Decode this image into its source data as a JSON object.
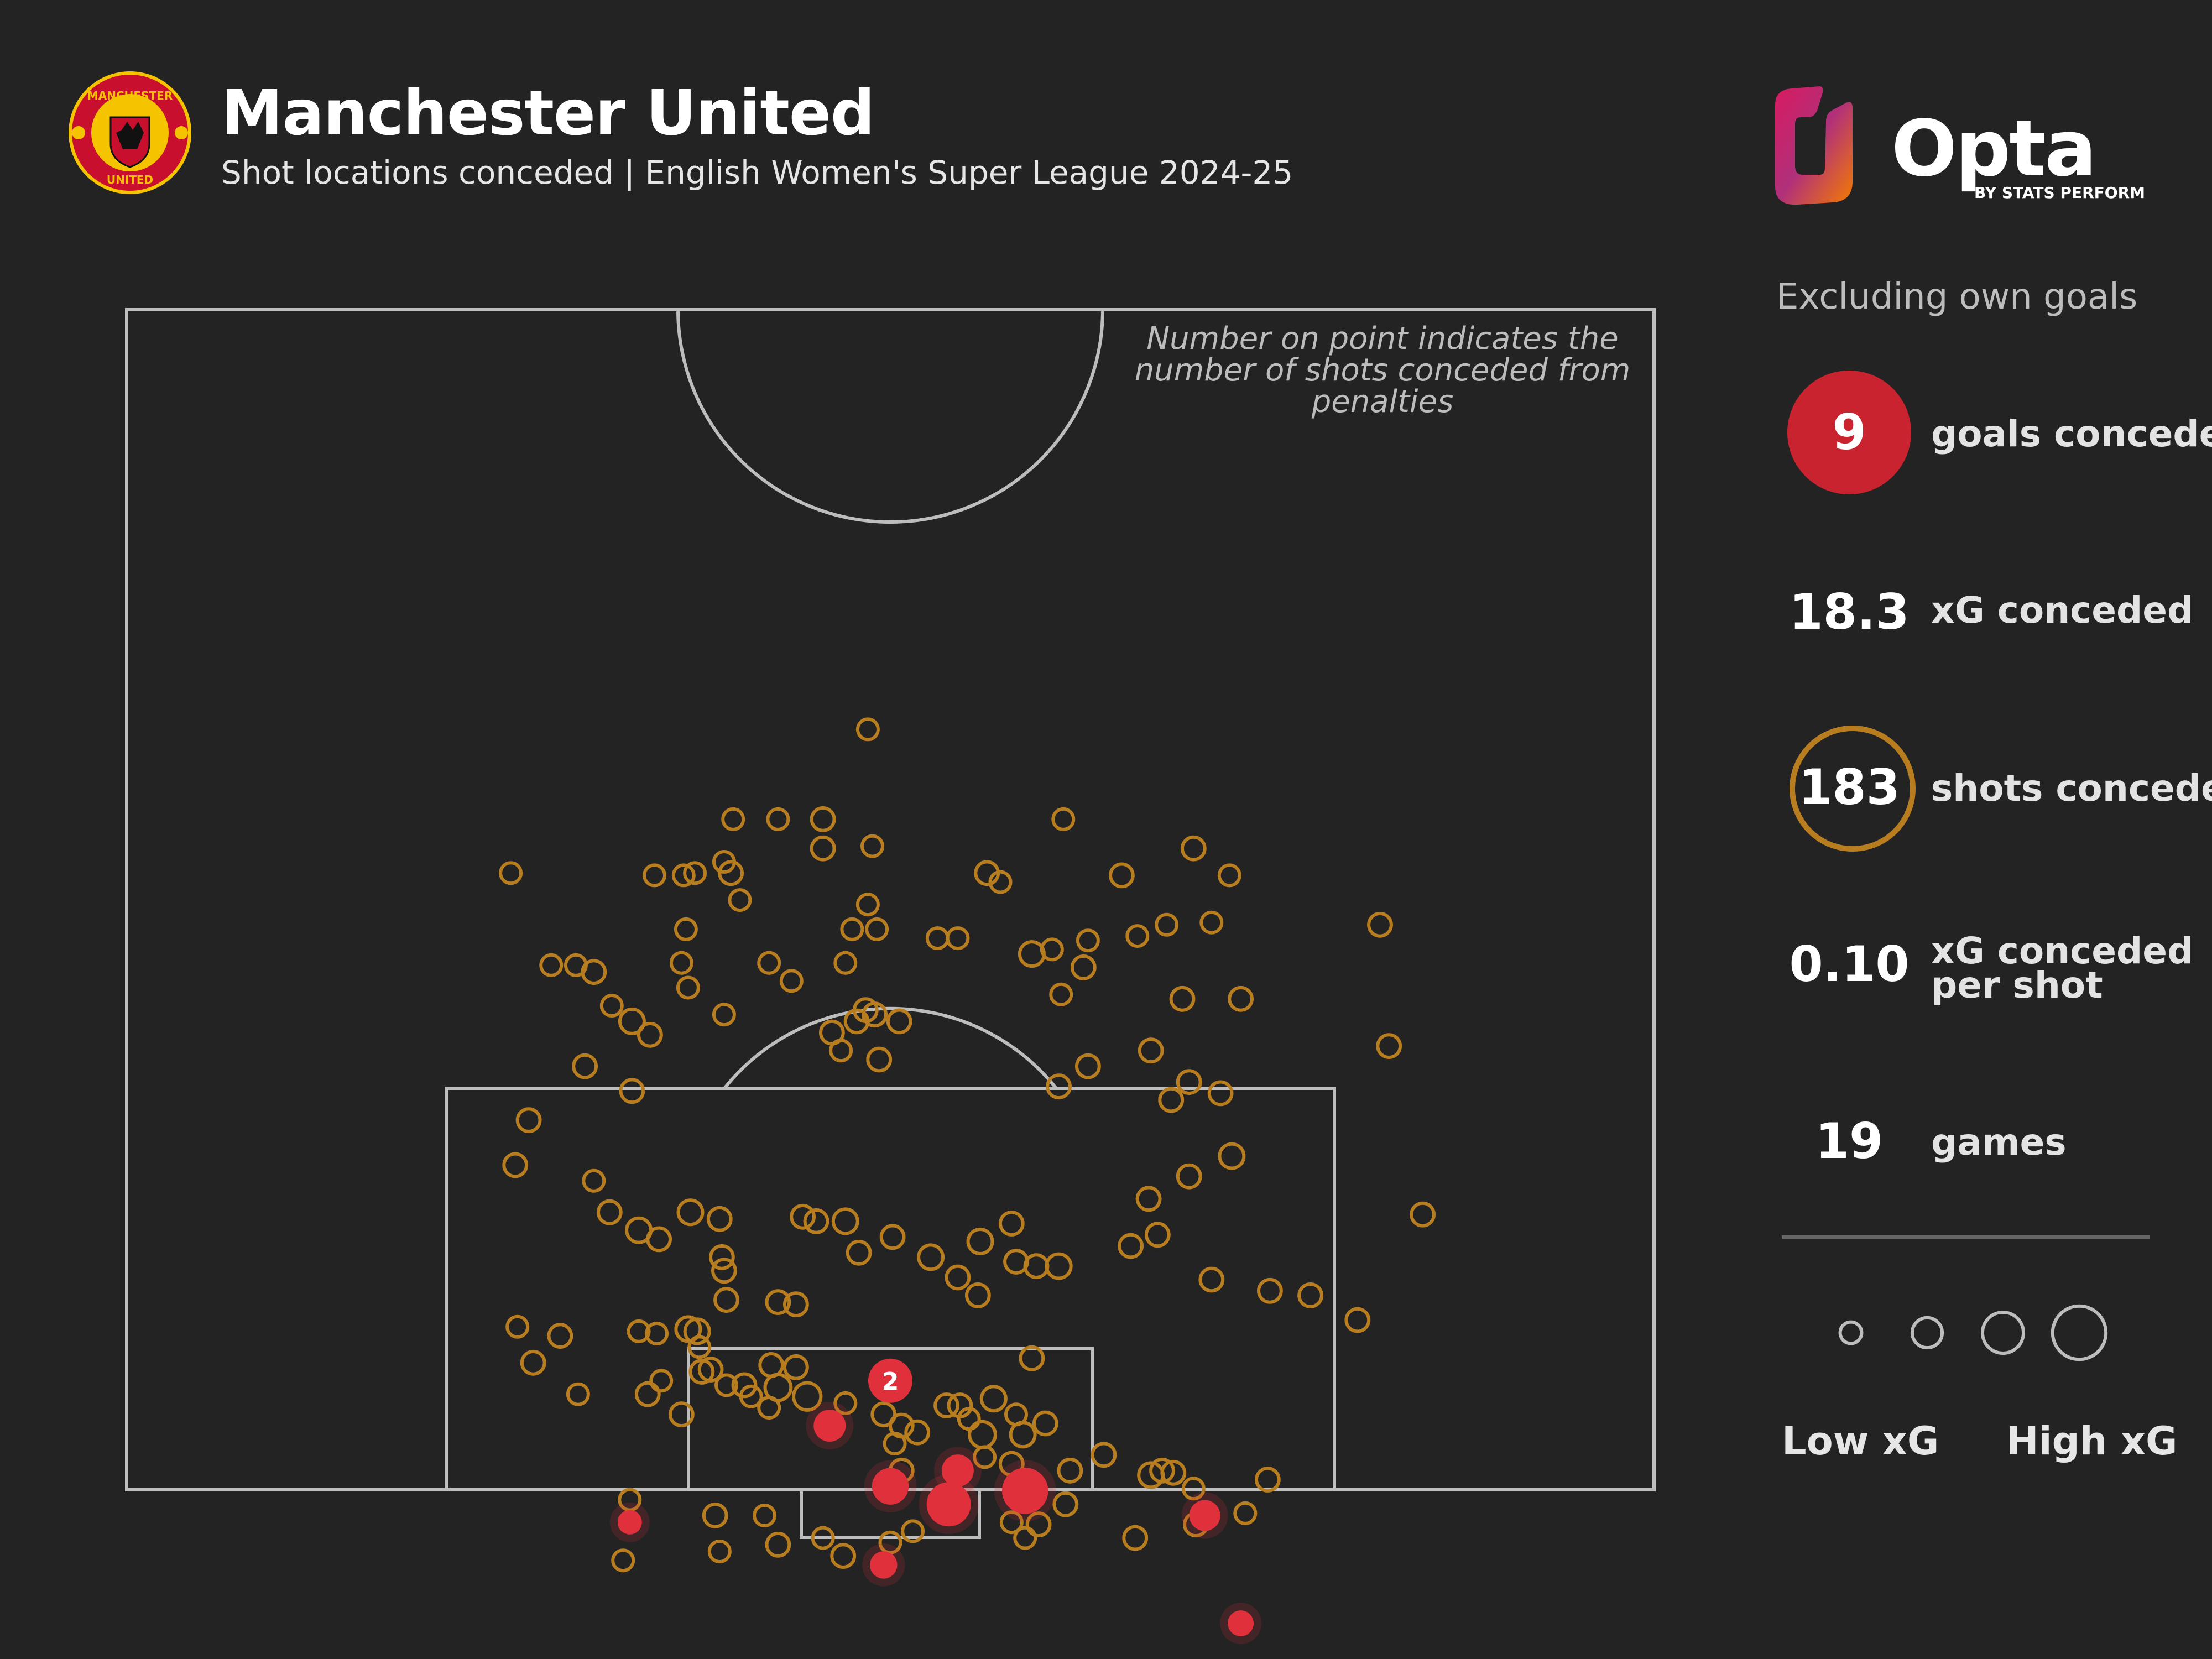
{
  "header": {
    "title": "Manchester United",
    "subtitle": "Shot locations conceded | English Women's Super League 2024-25"
  },
  "crest": {
    "text_top": "MANCHESTER",
    "text_bottom": "UNITED"
  },
  "brand": {
    "name": "Opta",
    "byline": "BY STATS PERFORM"
  },
  "note": "Number on point indicates the number of shots conceded from penalties",
  "panel": {
    "exclusion": "Excluding own goals",
    "stats": [
      {
        "value": "9",
        "label": "goals conceded"
      },
      {
        "value": "18.3",
        "label": "xG conceded"
      },
      {
        "value": "183",
        "label": "shots conceded"
      },
      {
        "value": "0.10",
        "label_line1": "xG conceded",
        "label_line2": "per shot"
      },
      {
        "value": "19",
        "label": "games"
      }
    ],
    "legend": {
      "low": "Low xG",
      "high": "High xG"
    }
  },
  "colors": {
    "background": "#232323",
    "shot": "#b87d1f",
    "goal": "#e0303c",
    "pitch_lines": "#bdbdbd"
  },
  "chart_data": {
    "type": "scatter",
    "pitch": {
      "x": [
        0,
        68
      ],
      "y": [
        0,
        52.5
      ],
      "description": "attacking half, goal at y = 52.5"
    },
    "xg_size_legend": [
      0.03,
      0.1,
      0.25,
      0.5
    ],
    "shots": [
      {
        "x": 33.0,
        "y": 18.0,
        "xg": 0.02
      },
      {
        "x": 27.0,
        "y": 14.0,
        "xg": 0.02
      },
      {
        "x": 29.0,
        "y": 14.0,
        "xg": 0.02
      },
      {
        "x": 31.0,
        "y": 14.0,
        "xg": 0.03
      },
      {
        "x": 31.0,
        "y": 12.7,
        "xg": 0.03
      },
      {
        "x": 33.2,
        "y": 12.8,
        "xg": 0.02
      },
      {
        "x": 41.7,
        "y": 14.0,
        "xg": 0.02
      },
      {
        "x": 17.1,
        "y": 11.6,
        "xg": 0.02
      },
      {
        "x": 23.5,
        "y": 11.5,
        "xg": 0.02
      },
      {
        "x": 25.3,
        "y": 11.6,
        "xg": 0.02
      },
      {
        "x": 26.9,
        "y": 11.6,
        "xg": 0.03
      },
      {
        "x": 26.6,
        "y": 12.1,
        "xg": 0.02
      },
      {
        "x": 24.8,
        "y": 11.5,
        "xg": 0.02
      },
      {
        "x": 33.0,
        "y": 10.2,
        "xg": 0.02
      },
      {
        "x": 44.3,
        "y": 11.5,
        "xg": 0.03
      },
      {
        "x": 49.1,
        "y": 11.5,
        "xg": 0.02
      },
      {
        "x": 47.5,
        "y": 12.7,
        "xg": 0.03
      },
      {
        "x": 38.9,
        "y": 11.2,
        "xg": 0.02
      },
      {
        "x": 38.3,
        "y": 11.6,
        "xg": 0.03
      },
      {
        "x": 27.3,
        "y": 10.4,
        "xg": 0.02
      },
      {
        "x": 24.9,
        "y": 9.1,
        "xg": 0.02
      },
      {
        "x": 32.3,
        "y": 9.1,
        "xg": 0.02
      },
      {
        "x": 33.4,
        "y": 9.1,
        "xg": 0.02
      },
      {
        "x": 36.1,
        "y": 8.7,
        "xg": 0.02
      },
      {
        "x": 37.0,
        "y": 8.7,
        "xg": 0.02
      },
      {
        "x": 42.8,
        "y": 8.6,
        "xg": 0.02
      },
      {
        "x": 41.2,
        "y": 8.2,
        "xg": 0.02
      },
      {
        "x": 46.3,
        "y": 9.3,
        "xg": 0.02
      },
      {
        "x": 45.0,
        "y": 8.8,
        "xg": 0.02
      },
      {
        "x": 48.3,
        "y": 9.4,
        "xg": 0.02
      },
      {
        "x": 55.8,
        "y": 9.3,
        "xg": 0.03
      },
      {
        "x": 18.9,
        "y": 7.5,
        "xg": 0.02
      },
      {
        "x": 20.0,
        "y": 7.5,
        "xg": 0.02
      },
      {
        "x": 20.8,
        "y": 7.2,
        "xg": 0.03
      },
      {
        "x": 24.7,
        "y": 7.6,
        "xg": 0.02
      },
      {
        "x": 28.6,
        "y": 7.6,
        "xg": 0.02
      },
      {
        "x": 29.6,
        "y": 6.8,
        "xg": 0.02
      },
      {
        "x": 40.3,
        "y": 8.0,
        "xg": 0.04
      },
      {
        "x": 42.6,
        "y": 7.4,
        "xg": 0.03
      },
      {
        "x": 21.6,
        "y": 5.7,
        "xg": 0.02
      },
      {
        "x": 22.5,
        "y": 5.0,
        "xg": 0.04
      },
      {
        "x": 23.3,
        "y": 4.4,
        "xg": 0.03
      },
      {
        "x": 25.0,
        "y": 6.5,
        "xg": 0.02
      },
      {
        "x": 26.6,
        "y": 5.3,
        "xg": 0.02
      },
      {
        "x": 31.4,
        "y": 4.5,
        "xg": 0.03
      },
      {
        "x": 32.5,
        "y": 5.0,
        "xg": 0.03
      },
      {
        "x": 33.3,
        "y": 5.3,
        "xg": 0.03
      },
      {
        "x": 32.9,
        "y": 5.5,
        "xg": 0.03
      },
      {
        "x": 34.4,
        "y": 5.0,
        "xg": 0.03
      },
      {
        "x": 31.8,
        "y": 3.7,
        "xg": 0.02
      },
      {
        "x": 32.0,
        "y": 7.6,
        "xg": 0.02
      },
      {
        "x": 41.6,
        "y": 6.2,
        "xg": 0.02
      },
      {
        "x": 47.0,
        "y": 6.0,
        "xg": 0.03
      },
      {
        "x": 49.6,
        "y": 6.0,
        "xg": 0.03
      },
      {
        "x": 45.6,
        "y": 3.7,
        "xg": 0.03
      },
      {
        "x": 20.4,
        "y": 3.0,
        "xg": 0.03
      },
      {
        "x": 22.5,
        "y": 1.9,
        "xg": 0.03
      },
      {
        "x": 17.9,
        "y": 0.6,
        "xg": 0.03
      },
      {
        "x": 33.5,
        "y": 3.3,
        "xg": 0.03
      },
      {
        "x": 42.8,
        "y": 3.0,
        "xg": 0.03
      },
      {
        "x": 41.5,
        "y": 2.1,
        "xg": 0.03
      },
      {
        "x": 56.2,
        "y": 3.9,
        "xg": 0.03
      },
      {
        "x": 47.3,
        "y": 2.3,
        "xg": 0.03
      },
      {
        "x": 46.5,
        "y": 1.5,
        "xg": 0.03
      },
      {
        "x": 48.7,
        "y": 1.8,
        "xg": 0.03
      },
      {
        "x": 17.3,
        "y": -1.4,
        "xg": 0.03
      },
      {
        "x": 20.8,
        "y": -2.1,
        "xg": 0.02
      },
      {
        "x": 21.5,
        "y": -3.5,
        "xg": 0.03
      },
      {
        "x": 22.8,
        "y": -4.3,
        "xg": 0.04
      },
      {
        "x": 23.7,
        "y": -4.7,
        "xg": 0.03
      },
      {
        "x": 25.1,
        "y": -3.5,
        "xg": 0.04
      },
      {
        "x": 26.4,
        "y": -3.8,
        "xg": 0.03
      },
      {
        "x": 26.5,
        "y": -5.5,
        "xg": 0.03
      },
      {
        "x": 26.6,
        "y": -6.1,
        "xg": 0.03
      },
      {
        "x": 26.7,
        "y": -7.4,
        "xg": 0.03
      },
      {
        "x": 25.0,
        "y": -8.7,
        "xg": 0.04
      },
      {
        "x": 25.5,
        "y": -9.5,
        "xg": 0.02
      },
      {
        "x": 26.0,
        "y": -10.5,
        "xg": 0.03
      },
      {
        "x": 27.5,
        "y": -11.2,
        "xg": 0.03
      },
      {
        "x": 29.0,
        "y": -7.5,
        "xg": 0.03
      },
      {
        "x": 29.8,
        "y": -7.6,
        "xg": 0.03
      },
      {
        "x": 30.1,
        "y": -3.7,
        "xg": 0.03
      },
      {
        "x": 30.7,
        "y": -3.9,
        "xg": 0.03
      },
      {
        "x": 32.0,
        "y": -3.9,
        "xg": 0.04
      },
      {
        "x": 32.6,
        "y": -5.3,
        "xg": 0.03
      },
      {
        "x": 34.1,
        "y": -4.6,
        "xg": 0.03
      },
      {
        "x": 35.8,
        "y": -5.5,
        "xg": 0.04
      },
      {
        "x": 37.0,
        "y": -6.4,
        "xg": 0.03
      },
      {
        "x": 37.9,
        "y": -7.2,
        "xg": 0.03
      },
      {
        "x": 38.0,
        "y": -4.8,
        "xg": 0.04
      },
      {
        "x": 39.4,
        "y": -4.0,
        "xg": 0.03
      },
      {
        "x": 39.6,
        "y": -5.7,
        "xg": 0.03
      },
      {
        "x": 40.5,
        "y": -5.9,
        "xg": 0.03
      },
      {
        "x": 41.5,
        "y": -5.9,
        "xg": 0.04
      },
      {
        "x": 44.7,
        "y": -5.0,
        "xg": 0.03
      },
      {
        "x": 45.5,
        "y": -2.9,
        "xg": 0.03
      },
      {
        "x": 45.9,
        "y": -4.5,
        "xg": 0.03
      },
      {
        "x": 47.3,
        "y": -1.9,
        "xg": 0.03
      },
      {
        "x": 48.3,
        "y": -6.5,
        "xg": 0.03
      },
      {
        "x": 49.2,
        "y": -1.0,
        "xg": 0.04
      },
      {
        "x": 50.9,
        "y": -7.0,
        "xg": 0.03
      },
      {
        "x": 52.7,
        "y": -7.2,
        "xg": 0.03
      },
      {
        "x": 54.8,
        "y": -8.3,
        "xg": 0.03
      },
      {
        "x": 57.7,
        "y": -3.6,
        "xg": 0.03
      },
      {
        "x": 40.3,
        "y": -10.0,
        "xg": 0.03
      },
      {
        "x": 20.1,
        "y": -11.6,
        "xg": 0.02
      },
      {
        "x": 25.4,
        "y": -8.8,
        "xg": 0.04
      },
      {
        "x": 17.4,
        "y": -8.6,
        "xg": 0.02
      },
      {
        "x": 18.1,
        "y": -10.2,
        "xg": 0.03
      },
      {
        "x": 19.3,
        "y": -9.0,
        "xg": 0.03
      },
      {
        "x": 22.8,
        "y": -8.8,
        "xg": 0.02
      },
      {
        "x": 23.6,
        "y": -8.9,
        "xg": 0.02
      },
      {
        "x": 23.2,
        "y": -11.6,
        "xg": 0.03
      },
      {
        "x": 23.8,
        "y": -11.0,
        "xg": 0.02
      },
      {
        "x": 24.7,
        "y": -12.5,
        "xg": 0.03
      },
      {
        "x": 25.6,
        "y": -10.6,
        "xg": 0.03
      },
      {
        "x": 26.7,
        "y": -11.2,
        "xg": 0.02
      },
      {
        "x": 28.7,
        "y": -10.3,
        "xg": 0.03
      },
      {
        "x": 29.8,
        "y": -10.4,
        "xg": 0.03
      },
      {
        "x": 29.0,
        "y": -11.3,
        "xg": 0.05
      },
      {
        "x": 27.8,
        "y": -11.7,
        "xg": 0.02
      },
      {
        "x": 28.6,
        "y": -12.2,
        "xg": 0.02
      },
      {
        "x": 30.3,
        "y": -11.7,
        "xg": 0.06
      },
      {
        "x": 32.0,
        "y": -12.0,
        "xg": 0.02
      },
      {
        "x": 33.7,
        "y": -12.5,
        "xg": 0.03
      },
      {
        "x": 34.5,
        "y": -13.0,
        "xg": 0.03
      },
      {
        "x": 34.2,
        "y": -13.8,
        "xg": 0.02
      },
      {
        "x": 34.5,
        "y": -15.0,
        "xg": 0.03
      },
      {
        "x": 35.2,
        "y": -13.3,
        "xg": 0.03
      },
      {
        "x": 36.5,
        "y": -12.1,
        "xg": 0.03
      },
      {
        "x": 37.1,
        "y": -12.1,
        "xg": 0.03
      },
      {
        "x": 37.5,
        "y": -12.7,
        "xg": 0.02
      },
      {
        "x": 38.6,
        "y": -11.8,
        "xg": 0.04
      },
      {
        "x": 39.6,
        "y": -12.5,
        "xg": 0.02
      },
      {
        "x": 39.9,
        "y": -13.4,
        "xg": 0.04
      },
      {
        "x": 38.1,
        "y": -13.4,
        "xg": 0.05
      },
      {
        "x": 38.2,
        "y": -14.4,
        "xg": 0.02
      },
      {
        "x": 40.9,
        "y": -12.9,
        "xg": 0.03
      },
      {
        "x": 39.4,
        "y": -14.7,
        "xg": 0.03
      },
      {
        "x": 42.0,
        "y": -15.0,
        "xg": 0.03
      },
      {
        "x": 43.5,
        "y": -14.3,
        "xg": 0.03
      },
      {
        "x": 45.6,
        "y": -15.2,
        "xg": 0.04
      },
      {
        "x": 46.1,
        "y": -15.0,
        "xg": 0.03
      },
      {
        "x": 46.6,
        "y": -15.1,
        "xg": 0.03
      },
      {
        "x": 47.5,
        "y": -15.8,
        "xg": 0.02
      },
      {
        "x": 50.8,
        "y": -15.4,
        "xg": 0.03
      },
      {
        "x": 49.8,
        "y": -16.9,
        "xg": 0.02
      },
      {
        "x": 47.6,
        "y": -17.4,
        "xg": 0.03
      },
      {
        "x": 41.8,
        "y": -16.5,
        "xg": 0.03
      },
      {
        "x": 39.4,
        "y": -17.3,
        "xg": 0.02
      },
      {
        "x": 40.6,
        "y": -17.4,
        "xg": 0.03
      },
      {
        "x": 40.0,
        "y": -18.0,
        "xg": 0.02
      },
      {
        "x": 44.9,
        "y": -18.0,
        "xg": 0.03
      },
      {
        "x": 35.0,
        "y": -17.7,
        "xg": 0.02
      },
      {
        "x": 34.0,
        "y": -18.2,
        "xg": 0.02
      },
      {
        "x": 31.9,
        "y": -18.8,
        "xg": 0.03
      },
      {
        "x": 31.0,
        "y": -18.0,
        "xg": 0.02
      },
      {
        "x": 29.0,
        "y": -18.3,
        "xg": 0.03
      },
      {
        "x": 28.4,
        "y": -17.0,
        "xg": 0.02
      },
      {
        "x": 26.2,
        "y": -17.0,
        "xg": 0.03
      },
      {
        "x": 26.4,
        "y": -18.6,
        "xg": 0.02
      },
      {
        "x": 22.4,
        "y": -16.3,
        "xg": 0.02
      },
      {
        "x": 22.1,
        "y": -19.0,
        "xg": 0.02
      }
    ],
    "goals": [
      {
        "x": 31.3,
        "y": -13.0,
        "xg": 0.1
      },
      {
        "x": 34.0,
        "y": -15.7,
        "xg": 0.15
      },
      {
        "x": 37.0,
        "y": -15.0,
        "xg": 0.1
      },
      {
        "x": 36.6,
        "y": -16.5,
        "xg": 0.25
      },
      {
        "x": 40.0,
        "y": -15.9,
        "xg": 0.28
      },
      {
        "x": 48.0,
        "y": -17.0,
        "xg": 0.09
      },
      {
        "x": 33.7,
        "y": -19.2,
        "xg": 0.06
      },
      {
        "x": 22.4,
        "y": -17.3,
        "xg": 0.04
      },
      {
        "x": 49.6,
        "y": -21.8,
        "xg": 0.05
      }
    ],
    "penalties": [
      {
        "x": 34.0,
        "y": -11.0,
        "count": 2,
        "label": "2"
      }
    ]
  }
}
